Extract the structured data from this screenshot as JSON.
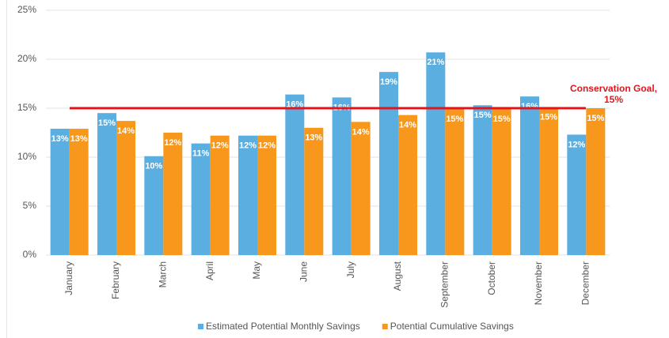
{
  "chart_data": {
    "type": "bar",
    "categories": [
      "January",
      "February",
      "March",
      "April",
      "May",
      "June",
      "July",
      "August",
      "September",
      "October",
      "November",
      "December"
    ],
    "series": [
      {
        "name": "Estimated Potential Monthly Savings",
        "color": "#5aaee0",
        "values": [
          12.9,
          14.5,
          10.1,
          11.4,
          12.2,
          16.4,
          16.1,
          18.7,
          20.7,
          15.3,
          16.2,
          12.3
        ],
        "value_labels": [
          "13%",
          "15%",
          "10%",
          "11%",
          "12%",
          "16%",
          "16%",
          "19%",
          "21%",
          "15%",
          "16%",
          "12%"
        ]
      },
      {
        "name": "Potential Cumulative Savings",
        "color": "#f7981d",
        "values": [
          12.9,
          13.7,
          12.5,
          12.2,
          12.2,
          13.0,
          13.6,
          14.3,
          14.9,
          14.9,
          15.1,
          15.0
        ],
        "value_labels": [
          "13%",
          "14%",
          "12%",
          "12%",
          "12%",
          "13%",
          "14%",
          "14%",
          "15%",
          "15%",
          "15%",
          "15%"
        ]
      }
    ],
    "ylim": [
      0,
      25
    ],
    "yticks": [
      {
        "value": 0,
        "label": "0%"
      },
      {
        "value": 5,
        "label": "5%"
      },
      {
        "value": 10,
        "label": "10%"
      },
      {
        "value": 15,
        "label": "15%"
      },
      {
        "value": 20,
        "label": "20%"
      },
      {
        "value": 25,
        "label": "25%"
      }
    ],
    "grid": true,
    "goal": {
      "value": 15,
      "color": "#e0161e",
      "label_lines": [
        "Conservation Goal,",
        "15%"
      ]
    },
    "legend": "bottom"
  }
}
